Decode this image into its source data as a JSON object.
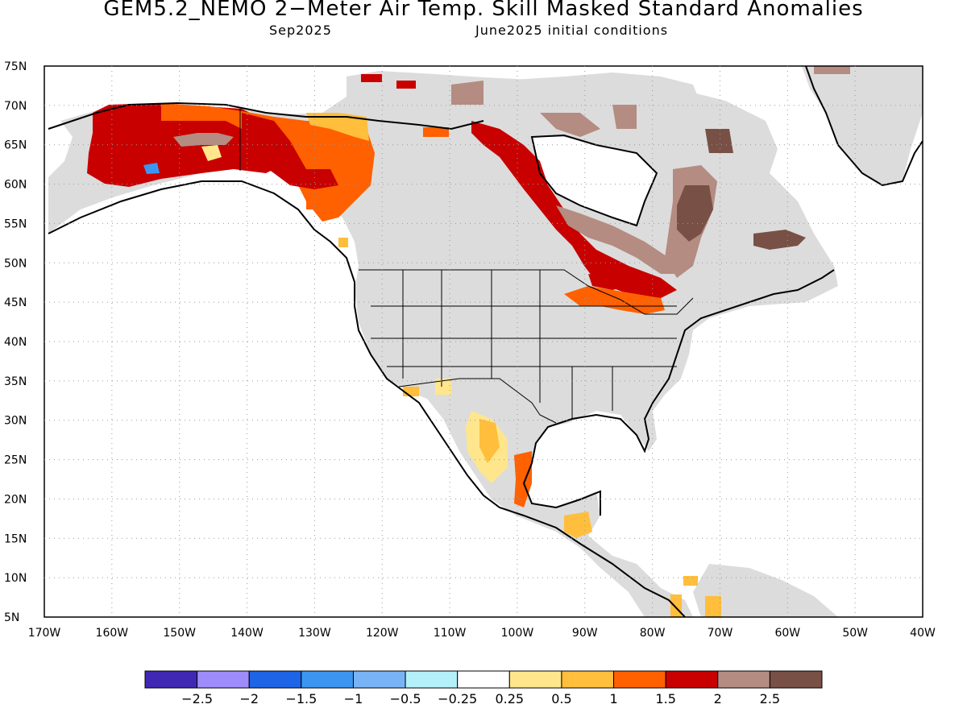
{
  "title": "GEM5.2_NEMO 2−Meter Air Temp. Skill Masked Standard Anomalies",
  "subtitle_left": "Sep2025",
  "subtitle_right": "June2025 initial conditions",
  "chart_data": {
    "type": "map",
    "projection": "cylindrical",
    "lon_range": [
      -170,
      -40
    ],
    "lat_range": [
      5,
      75
    ],
    "grid": true,
    "lat_ticks": [
      "75N",
      "70N",
      "65N",
      "60N",
      "55N",
      "50N",
      "45N",
      "40N",
      "35N",
      "30N",
      "25N",
      "20N",
      "15N",
      "10N",
      "5N"
    ],
    "lon_ticks": [
      "170W",
      "160W",
      "150W",
      "140W",
      "130W",
      "120W",
      "110W",
      "100W",
      "90W",
      "80W",
      "70W",
      "60W",
      "50W",
      "40W"
    ],
    "colorbar": {
      "colors": [
        "#4028b4",
        "#9e8cfa",
        "#1e64e6",
        "#3c96f0",
        "#78b4f5",
        "#b4f0fa",
        "#ffffff",
        "#ffe68c",
        "#ffbe3c",
        "#ff6000",
        "#c80000",
        "#b48c82",
        "#785046"
      ],
      "labels": [
        "−2.5",
        "−2",
        "−1.5",
        "−1",
        "−0.5",
        "−0.25",
        "0.25",
        "0.5",
        "1",
        "1.5",
        "2",
        "2.5"
      ]
    },
    "regions": [
      {
        "area": "Alaska interior",
        "category": "2"
      },
      {
        "area": "Yukon / NW Canada",
        "category": "1.5"
      },
      {
        "area": "Hudson Bay west/south shore",
        "category": "2"
      },
      {
        "area": "Ontario / Great Lakes",
        "category": "2"
      },
      {
        "area": "Quebec / Labrador",
        "category": "2.5"
      },
      {
        "area": "Mexico Sierra Madre",
        "category": "0.5"
      },
      {
        "area": "Gulf coast of Mexico",
        "category": "1.5"
      }
    ]
  }
}
